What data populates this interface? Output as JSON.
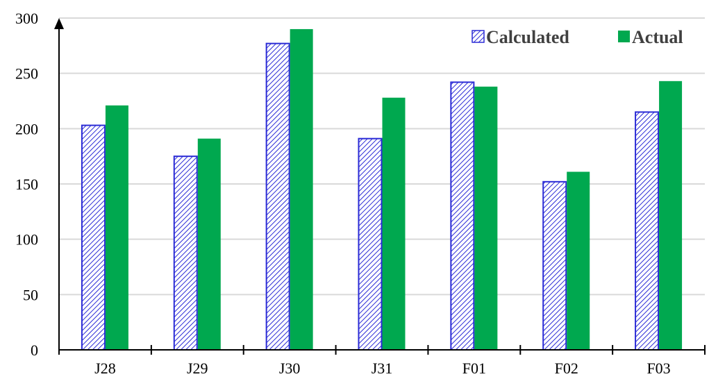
{
  "chart_data": {
    "type": "bar",
    "categories": [
      "J28",
      "J29",
      "J30",
      "J31",
      "F01",
      "F02",
      "F03"
    ],
    "series": [
      {
        "name": "Calculated",
        "values": [
          203,
          175,
          277,
          191,
          242,
          152,
          215
        ],
        "color": "#2b2bd6",
        "fill": "hatched"
      },
      {
        "name": "Actual",
        "values": [
          221,
          191,
          290,
          228,
          238,
          161,
          243
        ],
        "color": "#00a84f",
        "fill": "solid"
      }
    ],
    "title": "",
    "xlabel": "",
    "ylabel": "",
    "ylim": [
      0,
      300
    ],
    "yticks": [
      0,
      50,
      100,
      150,
      200,
      250,
      300
    ],
    "grid": true,
    "legend": "top-right"
  }
}
